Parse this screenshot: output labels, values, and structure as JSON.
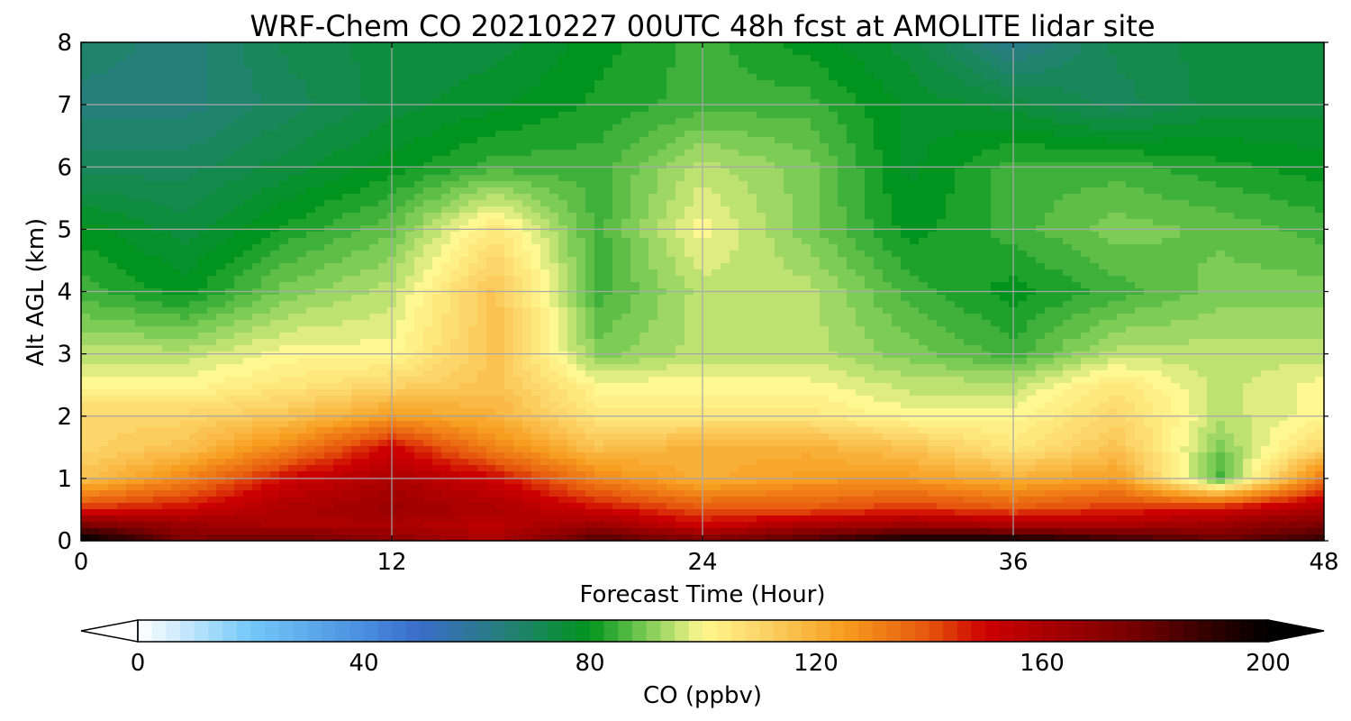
{
  "chart_data": {
    "type": "heatmap",
    "subtype": "filled-contour time-height cross section",
    "title": "WRF-Chem CO  20210227 00UTC 48h fcst at AMOLITE lidar site",
    "xlabel": "Forecast Time (Hour)",
    "ylabel": "Alt AGL (km)",
    "xlim": [
      0,
      48
    ],
    "ylim": [
      0,
      8
    ],
    "x_ticks": [
      0,
      12,
      24,
      36,
      48
    ],
    "x_tick_labels": [
      "0",
      "12",
      "24",
      "36",
      "48"
    ],
    "y_ticks": [
      0,
      1,
      2,
      3,
      4,
      5,
      6,
      7,
      8
    ],
    "y_tick_labels": [
      "0",
      "1",
      "2",
      "3",
      "4",
      "5",
      "6",
      "7",
      "8"
    ],
    "grid": true,
    "z_grid_x_hours": [
      0,
      4,
      8,
      12,
      16,
      20,
      24,
      28,
      32,
      36,
      40,
      44,
      48
    ],
    "z_grid_y_km": [
      0,
      0.25,
      0.5,
      1,
      1.5,
      2,
      2.5,
      3,
      4,
      5,
      6,
      7,
      8
    ],
    "z_values_ppbv": [
      [
        205,
        175,
        180,
        170,
        160,
        185,
        175,
        185,
        200,
        200,
        190,
        180,
        190
      ],
      [
        175,
        165,
        160,
        160,
        155,
        165,
        150,
        160,
        165,
        160,
        160,
        165,
        175
      ],
      [
        145,
        150,
        160,
        165,
        160,
        150,
        140,
        140,
        145,
        140,
        145,
        150,
        160
      ],
      [
        115,
        130,
        150,
        160,
        150,
        130,
        120,
        125,
        125,
        120,
        125,
        85,
        135
      ],
      [
        110,
        115,
        130,
        150,
        130,
        115,
        120,
        120,
        115,
        105,
        115,
        90,
        110
      ],
      [
        110,
        110,
        115,
        125,
        120,
        105,
        105,
        105,
        100,
        100,
        110,
        95,
        100
      ],
      [
        100,
        100,
        105,
        110,
        115,
        100,
        100,
        100,
        95,
        95,
        105,
        95,
        100
      ],
      [
        95,
        95,
        100,
        100,
        115,
        90,
        95,
        95,
        90,
        85,
        95,
        95,
        95
      ],
      [
        85,
        80,
        90,
        95,
        115,
        85,
        95,
        95,
        85,
        80,
        85,
        90,
        90
      ],
      [
        80,
        75,
        82,
        88,
        105,
        85,
        100,
        90,
        80,
        85,
        90,
        88,
        85
      ],
      [
        70,
        70,
        75,
        80,
        85,
        85,
        95,
        90,
        78,
        85,
        85,
        82,
        80
      ],
      [
        65,
        65,
        70,
        75,
        78,
        82,
        85,
        85,
        78,
        75,
        70,
        75,
        75
      ],
      [
        68,
        65,
        72,
        75,
        75,
        80,
        85,
        80,
        75,
        62,
        72,
        75,
        75
      ]
    ],
    "colorbar": {
      "label": "CO  (ppbv)",
      "min": 0,
      "max": 200,
      "extend": "both",
      "ticks": [
        0,
        40,
        80,
        120,
        160,
        200
      ],
      "tick_labels": [
        "0",
        "40",
        "80",
        "120",
        "160",
        "200"
      ],
      "stops": [
        {
          "value": 0,
          "color": "#ffffff"
        },
        {
          "value": 20,
          "color": "#74c8f7"
        },
        {
          "value": 40,
          "color": "#4a8edf"
        },
        {
          "value": 50,
          "color": "#3a6cc8"
        },
        {
          "value": 65,
          "color": "#267f7a"
        },
        {
          "value": 80,
          "color": "#00941e"
        },
        {
          "value": 90,
          "color": "#7dcc55"
        },
        {
          "value": 100,
          "color": "#fff78f"
        },
        {
          "value": 110,
          "color": "#fcd66a"
        },
        {
          "value": 125,
          "color": "#f79d1f"
        },
        {
          "value": 140,
          "color": "#e6560d"
        },
        {
          "value": 150,
          "color": "#cc0000"
        },
        {
          "value": 175,
          "color": "#7a0000"
        },
        {
          "value": 200,
          "color": "#000000"
        }
      ]
    }
  }
}
